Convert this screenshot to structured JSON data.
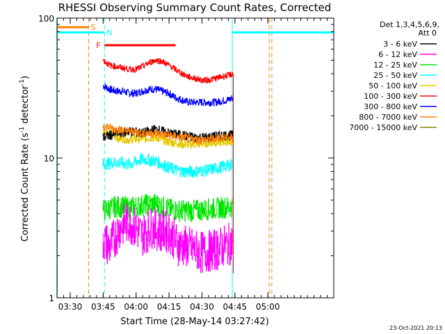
{
  "chart_data": {
    "type": "line",
    "title": "RHESSI Observing Summary Count Rates, Corrected",
    "xlabel": "Start Time (28-May-14 03:27:42)",
    "ylabel_main": "Corrected Count Rate (s",
    "ylabel_sup1": "-1",
    "ylabel_mid": " detector",
    "ylabel_sup2": "-1",
    "ylabel_end": ")",
    "yscale": "log",
    "ylim": [
      1,
      100
    ],
    "xlim_minutes": [
      3.4,
      5.5
    ],
    "x_ticks": [
      "03:30",
      "03:45",
      "04:00",
      "04:15",
      "04:30",
      "04:45",
      "05:00"
    ],
    "x_tick_values": [
      3.5,
      3.75,
      4.0,
      4.25,
      4.5,
      4.75,
      5.0
    ],
    "y_ticks": [
      "1",
      "10",
      "100"
    ],
    "y_tick_values": [
      1,
      10,
      100
    ],
    "legend_header": [
      "Det 1,3,4,5,6,9,",
      "Att 0"
    ],
    "legend_position": "right",
    "footer_date": "23-Oct-2021 20:13",
    "series": [
      {
        "name": "3 - 6 keV",
        "color": "#000000",
        "x": [
          3.75,
          3.85,
          3.95,
          4.05,
          4.15,
          4.25,
          4.35,
          4.45,
          4.55,
          4.65,
          4.74
        ],
        "y": [
          14,
          15,
          15.5,
          15,
          16,
          15,
          14.5,
          14,
          14,
          14.5,
          14.5
        ]
      },
      {
        "name": "6 - 12 keV",
        "color": "#ff00ff",
        "x": [
          3.75,
          3.8,
          3.88,
          3.95,
          4.05,
          4.12,
          4.18,
          4.25,
          4.32,
          4.4,
          4.5,
          4.6,
          4.7,
          4.74
        ],
        "y": [
          2.6,
          2.3,
          3.2,
          3.5,
          2.8,
          3.2,
          3.0,
          3.0,
          2.4,
          2.3,
          2.1,
          2.2,
          2.4,
          2.5
        ]
      },
      {
        "name": "12 - 25 keV",
        "color": "#00e600",
        "x": [
          3.75,
          3.85,
          3.95,
          4.05,
          4.15,
          4.25,
          4.35,
          4.45,
          4.55,
          4.65,
          4.74
        ],
        "y": [
          4.2,
          4.5,
          4.4,
          4.6,
          4.7,
          4.3,
          4.2,
          4.2,
          4.3,
          4.4,
          4.5
        ]
      },
      {
        "name": "25 - 50 keV",
        "color": "#00ffff",
        "x": [
          3.75,
          3.85,
          3.95,
          4.05,
          4.15,
          4.25,
          4.35,
          4.45,
          4.55,
          4.65,
          4.74
        ],
        "y": [
          9.0,
          9.3,
          9.0,
          9.8,
          9.5,
          8.5,
          8.0,
          8.0,
          8.2,
          8.6,
          9.0
        ]
      },
      {
        "name": "50 - 100 keV",
        "color": "#e6c800",
        "x": [
          3.75,
          3.85,
          3.95,
          4.05,
          4.15,
          4.25,
          4.35,
          4.45,
          4.55,
          4.65,
          4.74
        ],
        "y": [
          16,
          14,
          13.5,
          13.8,
          14,
          13,
          12.5,
          12.5,
          12.8,
          13,
          13.2
        ]
      },
      {
        "name": "100 - 300 keV",
        "color": "#ff0000",
        "x": [
          3.75,
          3.8,
          3.85,
          3.9,
          3.95,
          4.0,
          4.05,
          4.1,
          4.15,
          4.2,
          4.25,
          4.3,
          4.35,
          4.4,
          4.45,
          4.5,
          4.55,
          4.6,
          4.65,
          4.7,
          4.74
        ],
        "y": [
          50,
          46,
          45,
          44,
          43,
          43,
          45,
          48,
          50,
          49,
          46,
          43,
          40,
          38,
          37,
          36,
          36,
          37,
          38,
          39,
          40
        ]
      },
      {
        "name": "300 - 800 keV",
        "color": "#0000ff",
        "x": [
          3.75,
          3.8,
          3.85,
          3.9,
          3.95,
          4.0,
          4.05,
          4.1,
          4.15,
          4.2,
          4.25,
          4.3,
          4.35,
          4.4,
          4.45,
          4.5,
          4.55,
          4.6,
          4.65,
          4.7,
          4.74
        ],
        "y": [
          33,
          31,
          30,
          30,
          29,
          29,
          30,
          31,
          31,
          30,
          29,
          27,
          26,
          25,
          25,
          25,
          25,
          25,
          25.5,
          26,
          27
        ]
      },
      {
        "name": "800 - 7000 keV",
        "color": "#ff8000",
        "x": [
          3.75,
          3.85,
          3.95,
          4.05,
          4.15,
          4.25,
          4.35,
          4.45,
          4.55,
          4.65,
          4.74
        ],
        "y": [
          17,
          16,
          15.5,
          15,
          15,
          14.5,
          14,
          13.5,
          13.5,
          14,
          14
        ]
      },
      {
        "name": "7000 - 15000 keV",
        "color": "#808000",
        "x": [],
        "y": []
      }
    ],
    "markers": [
      {
        "label": "S",
        "color": "#ff8000",
        "bar_start": 3.4,
        "bar_end": 3.64,
        "level": 86
      },
      {
        "label": "N",
        "color": "#00ffff",
        "bar_start": 3.4,
        "bar_end": 3.76,
        "level": 79
      },
      {
        "label": "F",
        "color": "#ff0000",
        "bar_start": 3.76,
        "bar_end": 4.3,
        "level": 64
      }
    ],
    "lines": {
      "saa_end": 3.64,
      "night_end": 3.76,
      "night_start": 4.73,
      "saa_start": 5.01,
      "saa_start2": 5.03,
      "night_bar_right_start": 4.73,
      "night_bar_right_end": 5.5,
      "night_bar_right_level": 79
    }
  }
}
